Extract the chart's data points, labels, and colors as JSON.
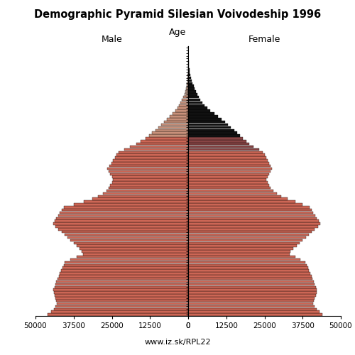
{
  "title": "Demographic Pyramid Silesian Voivodeship 1996",
  "label_male": "Male",
  "label_female": "Female",
  "age_label": "Age",
  "source": "www.iz.sk/RPL22",
  "xlim": 50000,
  "ytick_positions": [
    10,
    20,
    30,
    40,
    50,
    60,
    70,
    80,
    90
  ],
  "male": [
    46000,
    45000,
    44000,
    43500,
    43000,
    43200,
    43500,
    43800,
    44000,
    44200,
    43800,
    43500,
    43200,
    42800,
    42400,
    42000,
    41600,
    41200,
    40800,
    40400,
    38500,
    36500,
    34500,
    34800,
    35500,
    36500,
    37500,
    38500,
    39500,
    40500,
    41500,
    42500,
    43500,
    44200,
    43800,
    43200,
    42600,
    42000,
    41400,
    40800,
    37500,
    34200,
    31500,
    29500,
    28000,
    26800,
    26000,
    25500,
    25000,
    24600,
    25000,
    25500,
    26000,
    26400,
    25800,
    25200,
    24600,
    24000,
    23400,
    22800,
    21000,
    19000,
    17000,
    15500,
    14000,
    12800,
    11800,
    10800,
    9800,
    8800,
    7800,
    6900,
    6000,
    5100,
    4300,
    3600,
    3000,
    2500,
    2000,
    1600,
    1250,
    950,
    720,
    540,
    400,
    290,
    210,
    150,
    100,
    70,
    45,
    28,
    16,
    9,
    5,
    3,
    2,
    1
  ],
  "female": [
    44000,
    43000,
    42000,
    41500,
    41000,
    41200,
    41500,
    41800,
    42000,
    42200,
    41800,
    41500,
    41200,
    40800,
    40400,
    40000,
    39600,
    39200,
    38800,
    38400,
    36800,
    35000,
    33200,
    33600,
    34500,
    35500,
    36500,
    37500,
    38500,
    39500,
    40500,
    41500,
    42500,
    43200,
    42800,
    42200,
    41600,
    41000,
    40400,
    39800,
    37500,
    35000,
    32500,
    30500,
    29000,
    27800,
    27000,
    26500,
    26000,
    25600,
    26000,
    26500,
    27000,
    27400,
    27000,
    26500,
    26000,
    25500,
    25000,
    24500,
    23200,
    21500,
    20000,
    19000,
    18000,
    17000,
    16000,
    15000,
    14000,
    13000,
    12000,
    11000,
    9800,
    8500,
    7200,
    6200,
    5300,
    4600,
    4000,
    3500,
    3000,
    2500,
    2100,
    1750,
    1430,
    1150,
    900,
    700,
    530,
    390,
    280,
    190,
    125,
    78,
    46,
    25,
    13,
    6
  ],
  "male_colors_by_age": {
    "0_64": "#cc6655",
    "65_79": "#c8907a",
    "80_95": "#c0a090"
  },
  "female_colors_by_age": {
    "0_59": "#cc6655",
    "60_64": "#884444",
    "65_95": "#111111"
  }
}
